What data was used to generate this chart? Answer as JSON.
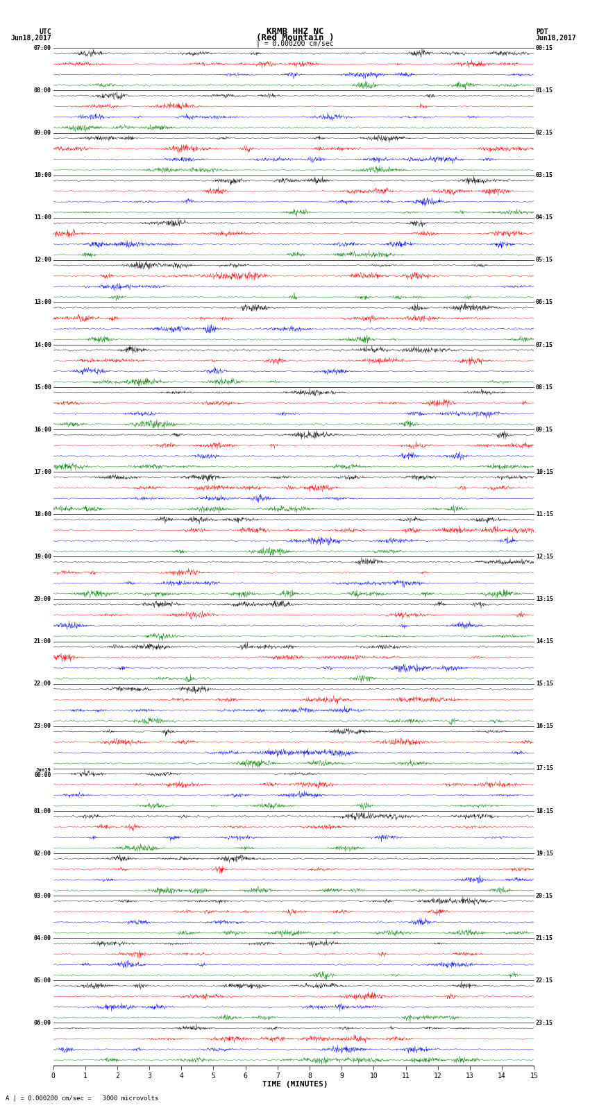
{
  "title_line1": "KRMB HHZ NC",
  "title_line2": "(Red Mountain )",
  "scale_text": "| = 0.000200 cm/sec",
  "scale_text2": "A | = 0.000200 cm/sec =   3000 microvolts",
  "xlabel": "TIME (MINUTES)",
  "x_ticks": [
    0,
    1,
    2,
    3,
    4,
    5,
    6,
    7,
    8,
    9,
    10,
    11,
    12,
    13,
    14,
    15
  ],
  "utc_times": [
    "07:00",
    "08:00",
    "09:00",
    "10:00",
    "11:00",
    "12:00",
    "13:00",
    "14:00",
    "15:00",
    "16:00",
    "17:00",
    "18:00",
    "19:00",
    "20:00",
    "21:00",
    "22:00",
    "23:00",
    "Jun19\n00:00",
    "01:00",
    "02:00",
    "03:00",
    "04:00",
    "05:00",
    "06:00"
  ],
  "pdt_times": [
    "00:15",
    "01:15",
    "02:15",
    "03:15",
    "04:15",
    "05:15",
    "06:15",
    "07:15",
    "08:15",
    "09:15",
    "10:15",
    "11:15",
    "12:15",
    "13:15",
    "14:15",
    "15:15",
    "16:15",
    "17:15",
    "18:15",
    "19:15",
    "20:15",
    "21:15",
    "22:15",
    "23:15"
  ],
  "n_rows": 24,
  "traces_per_row": 4,
  "colors": [
    "black",
    "red",
    "blue",
    "green"
  ],
  "fig_width": 8.5,
  "fig_height": 16.13,
  "dpi": 100,
  "background_color": "white",
  "noise_scale": [
    0.28,
    0.45,
    0.38,
    0.28
  ],
  "seed": 42
}
